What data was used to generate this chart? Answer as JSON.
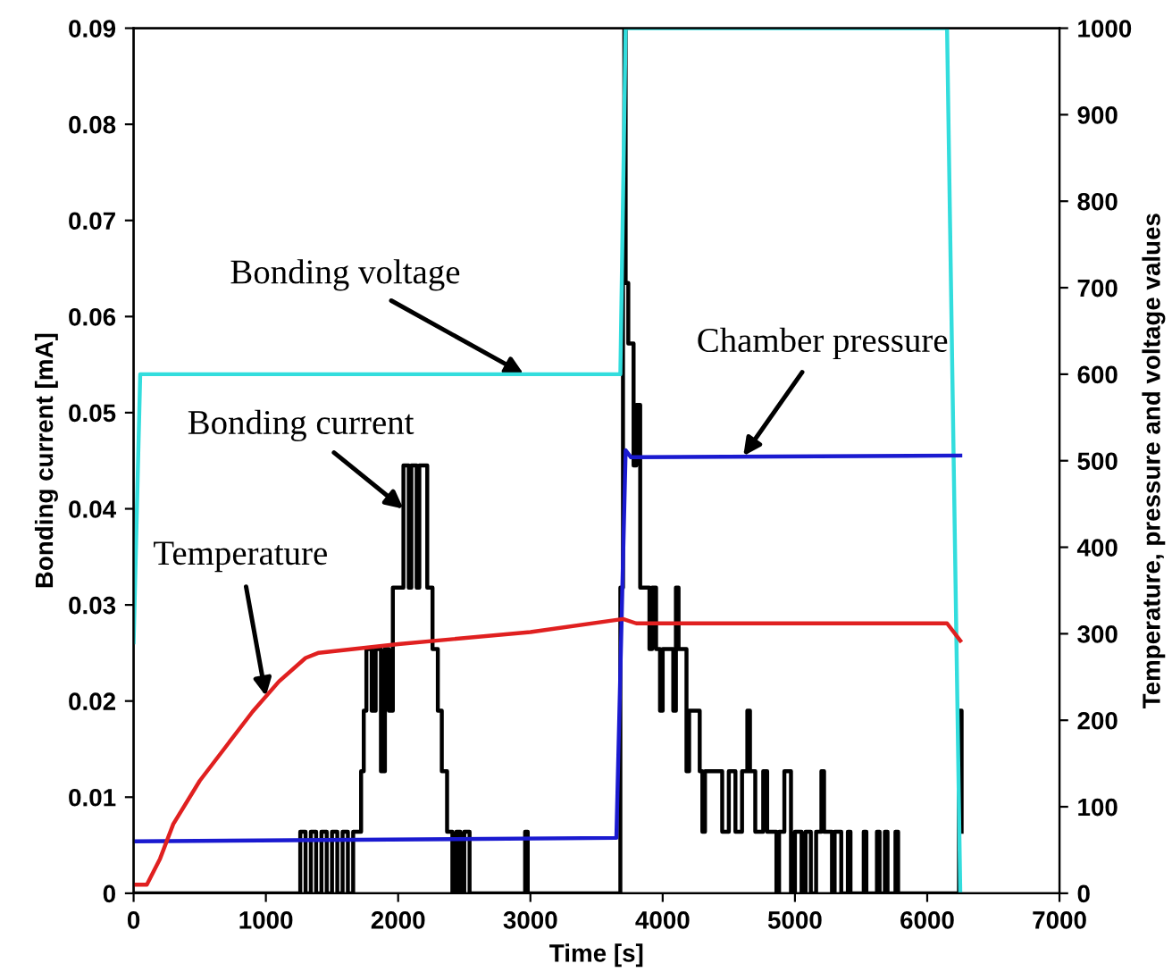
{
  "chart_data": {
    "type": "line",
    "xlabel": "Time [s]",
    "ylabel": "Bonding current [mA]",
    "y2label": "Temperature, pressure and voltage values",
    "xlim": [
      0,
      7000
    ],
    "xticks": [
      0,
      1000,
      2000,
      3000,
      4000,
      5000,
      6000,
      7000
    ],
    "ylim": [
      0,
      0.09
    ],
    "yticks": [
      0,
      0.01,
      0.02,
      0.03,
      0.04,
      0.05,
      0.06,
      0.07,
      0.08,
      0.09
    ],
    "y2lim": [
      0,
      1000
    ],
    "y2ticks": [
      0,
      100,
      200,
      300,
      400,
      500,
      600,
      700,
      800,
      900,
      1000
    ],
    "grid": false,
    "legend": false,
    "series": [
      {
        "axis": "y2",
        "color": "#33dddd",
        "x": [
          0,
          50,
          3680,
          3720,
          6150,
          6250
        ],
        "values": [
          290,
          600,
          600,
          1000,
          1000,
          0
        ]
      },
      {
        "axis": "y2",
        "color": "#1a1ad0",
        "x": [
          0,
          3650,
          3720,
          3760,
          6250
        ],
        "values": [
          60,
          64,
          512,
          504,
          506
        ]
      },
      {
        "axis": "y2",
        "color": "#e02020",
        "x": [
          0,
          100,
          200,
          300,
          500,
          700,
          900,
          1100,
          1300,
          1400,
          2000,
          3000,
          3700,
          3800,
          6150,
          6250
        ],
        "values": [
          10,
          10,
          40,
          80,
          130,
          170,
          210,
          245,
          272,
          278,
          288,
          302,
          317,
          312,
          312,
          292
        ]
      },
      {
        "type": "step",
        "color": "#000000",
        "x": [
          0,
          1260,
          1300,
          1340,
          1380,
          1420,
          1460,
          1500,
          1540,
          1580,
          1620,
          1660,
          1720,
          1740,
          1760,
          1800,
          1830,
          1870,
          1900,
          1930,
          1960,
          2040,
          2080,
          2100,
          2140,
          2160,
          2220,
          2260,
          2300,
          2330,
          2370,
          2410,
          2440,
          2470,
          2500,
          2540,
          2960,
          2980,
          3680,
          3700,
          3710,
          3720,
          3740,
          3780,
          3800,
          3830,
          3900,
          3920,
          3950,
          3980,
          4000,
          4080,
          4100,
          4120,
          4180,
          4200,
          4280,
          4300,
          4320,
          4450,
          4500,
          4550,
          4600,
          4640,
          4660,
          4700,
          4760,
          4790,
          4860,
          4880,
          4920,
          4970,
          5000,
          5050,
          5080,
          5120,
          5160,
          5200,
          5220,
          5280,
          5300,
          5350,
          5400,
          5420,
          5520,
          5540,
          5620,
          5640,
          5680,
          5700,
          5760,
          5780,
          6240,
          6260
        ],
        "values": [
          0,
          0.0064,
          0,
          0.0064,
          0,
          0.0064,
          0,
          0.0064,
          0,
          0.0064,
          0,
          0.0064,
          0.0127,
          0.019,
          0.0254,
          0.019,
          0.0254,
          0.0127,
          0.0254,
          0.019,
          0.0318,
          0.0445,
          0.0318,
          0.0445,
          0.0318,
          0.0445,
          0.0318,
          0.0254,
          0.019,
          0.0127,
          0.0064,
          0,
          0.0064,
          0,
          0.0064,
          0,
          0.0064,
          0,
          0.0318,
          0.0635,
          0.09,
          0.0635,
          0.0572,
          0.0445,
          0.0508,
          0.0318,
          0.0254,
          0.0318,
          0.0254,
          0.019,
          0.0254,
          0.019,
          0.0318,
          0.0254,
          0.0127,
          0.019,
          0.0127,
          0.0064,
          0.0127,
          0.0064,
          0.0127,
          0.0064,
          0.0127,
          0.019,
          0.0127,
          0.0064,
          0.0127,
          0.0064,
          0,
          0.0064,
          0.0127,
          0,
          0.0064,
          0,
          0.0064,
          0,
          0.0064,
          0.0127,
          0.0064,
          0,
          0.0064,
          0,
          0.0064,
          0,
          0.0064,
          0,
          0.0064,
          0,
          0.0064,
          0,
          0.0064,
          0,
          0.019,
          0.0064
        ]
      }
    ],
    "annotations": [
      {
        "text": "Bonding voltage",
        "x": 2950,
        "y": 0.054
      },
      {
        "text": "Bonding current",
        "x": 2040,
        "y": 0.04
      },
      {
        "text": "Temperature",
        "x": 1000,
        "y": 0.0205
      },
      {
        "text": "Chamber pressure",
        "x": 4610,
        "y": 0.0455
      }
    ]
  }
}
